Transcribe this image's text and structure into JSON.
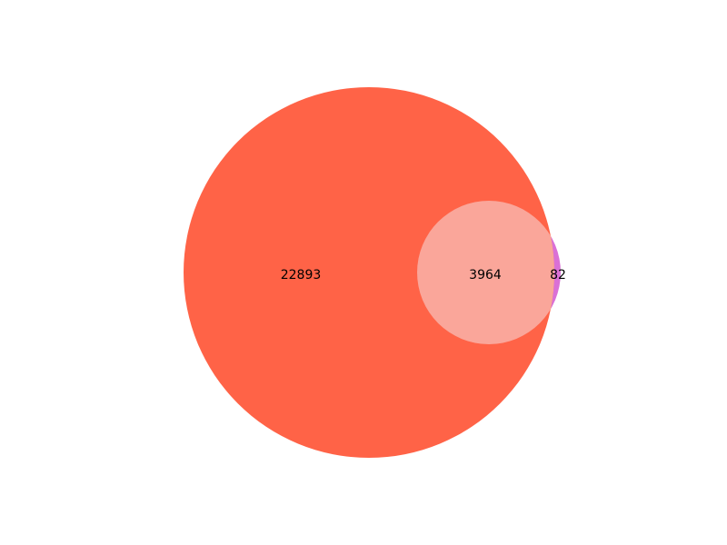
{
  "chart_data": {
    "type": "venn",
    "sets": [
      {
        "color": "#ff6347",
        "size": 26857
      },
      {
        "color": "#da70d6",
        "size": 4046
      }
    ],
    "regions": [
      {
        "id": "set_a_only",
        "value": 22893
      },
      {
        "id": "intersection",
        "value": 3964
      },
      {
        "id": "set_b_only",
        "value": 82
      }
    ],
    "labels": {
      "set_a_only": "22893",
      "intersection": "3964",
      "set_b_only": "82"
    },
    "colors": {
      "set_a": "#ff6347",
      "set_b": "#da70d6",
      "intersection": "#faa69a"
    }
  }
}
